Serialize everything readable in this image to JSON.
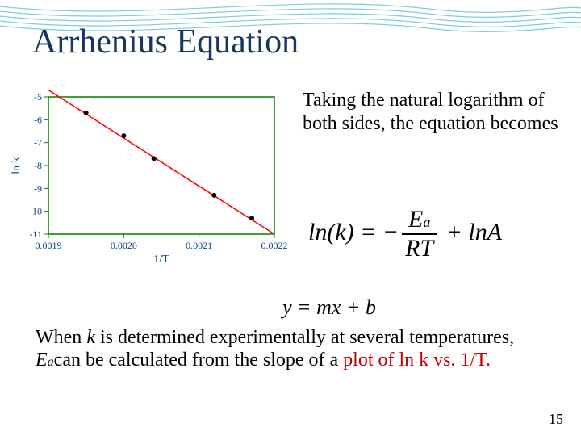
{
  "title": "Arrhenius Equation",
  "wave": {
    "stroke_color": "#7fcdd8",
    "stroke_width": 1.2,
    "count": 5
  },
  "chart": {
    "type": "scatter-line",
    "x_label": "1/T",
    "y_label": "ln k",
    "xlim": [
      0.0019,
      0.0022
    ],
    "ylim": [
      -11,
      -5
    ],
    "xticks": [
      0.0019,
      0.002,
      0.0021,
      0.0022
    ],
    "yticks": [
      -5,
      -6,
      -7,
      -8,
      -9,
      -10,
      -11
    ],
    "axis_color": "#008000",
    "tick_color": "#008000",
    "text_color": "#004080",
    "font_size": 12,
    "points": [
      {
        "x": 0.00195,
        "y": -5.7
      },
      {
        "x": 0.002,
        "y": -6.7
      },
      {
        "x": 0.00204,
        "y": -7.7
      },
      {
        "x": 0.00212,
        "y": -9.3
      },
      {
        "x": 0.00217,
        "y": -10.3
      }
    ],
    "point_color": "#000000",
    "point_radius": 3,
    "line": {
      "color": "#ff0000",
      "width": 1.5,
      "x1": 0.0019,
      "y1": -4.7,
      "x2": 0.0022,
      "y2": -11.0
    }
  },
  "explanation": "Taking the natural logarithm of both sides, the equation becomes",
  "equation": {
    "lhs": "ln(k)",
    "eq": " = ",
    "minus": "−",
    "num": "E",
    "num_sub": "a",
    "den": "RT",
    "plus": " + ",
    "rhs": "lnA"
  },
  "linear": {
    "text": "y   =   mx + b"
  },
  "body": {
    "line1_a": "When ",
    "line1_k": "k",
    "line1_b": " is determined experimentally at several temperatures, ",
    "line1_E": "E",
    "line1_a_sub": "a",
    "line1_c": "can be calculated from the slope of a ",
    "plot": "plot of ln k vs. 1/T."
  },
  "page": "15",
  "colors": {
    "title": "#17365d",
    "highlight": "#c00000"
  }
}
